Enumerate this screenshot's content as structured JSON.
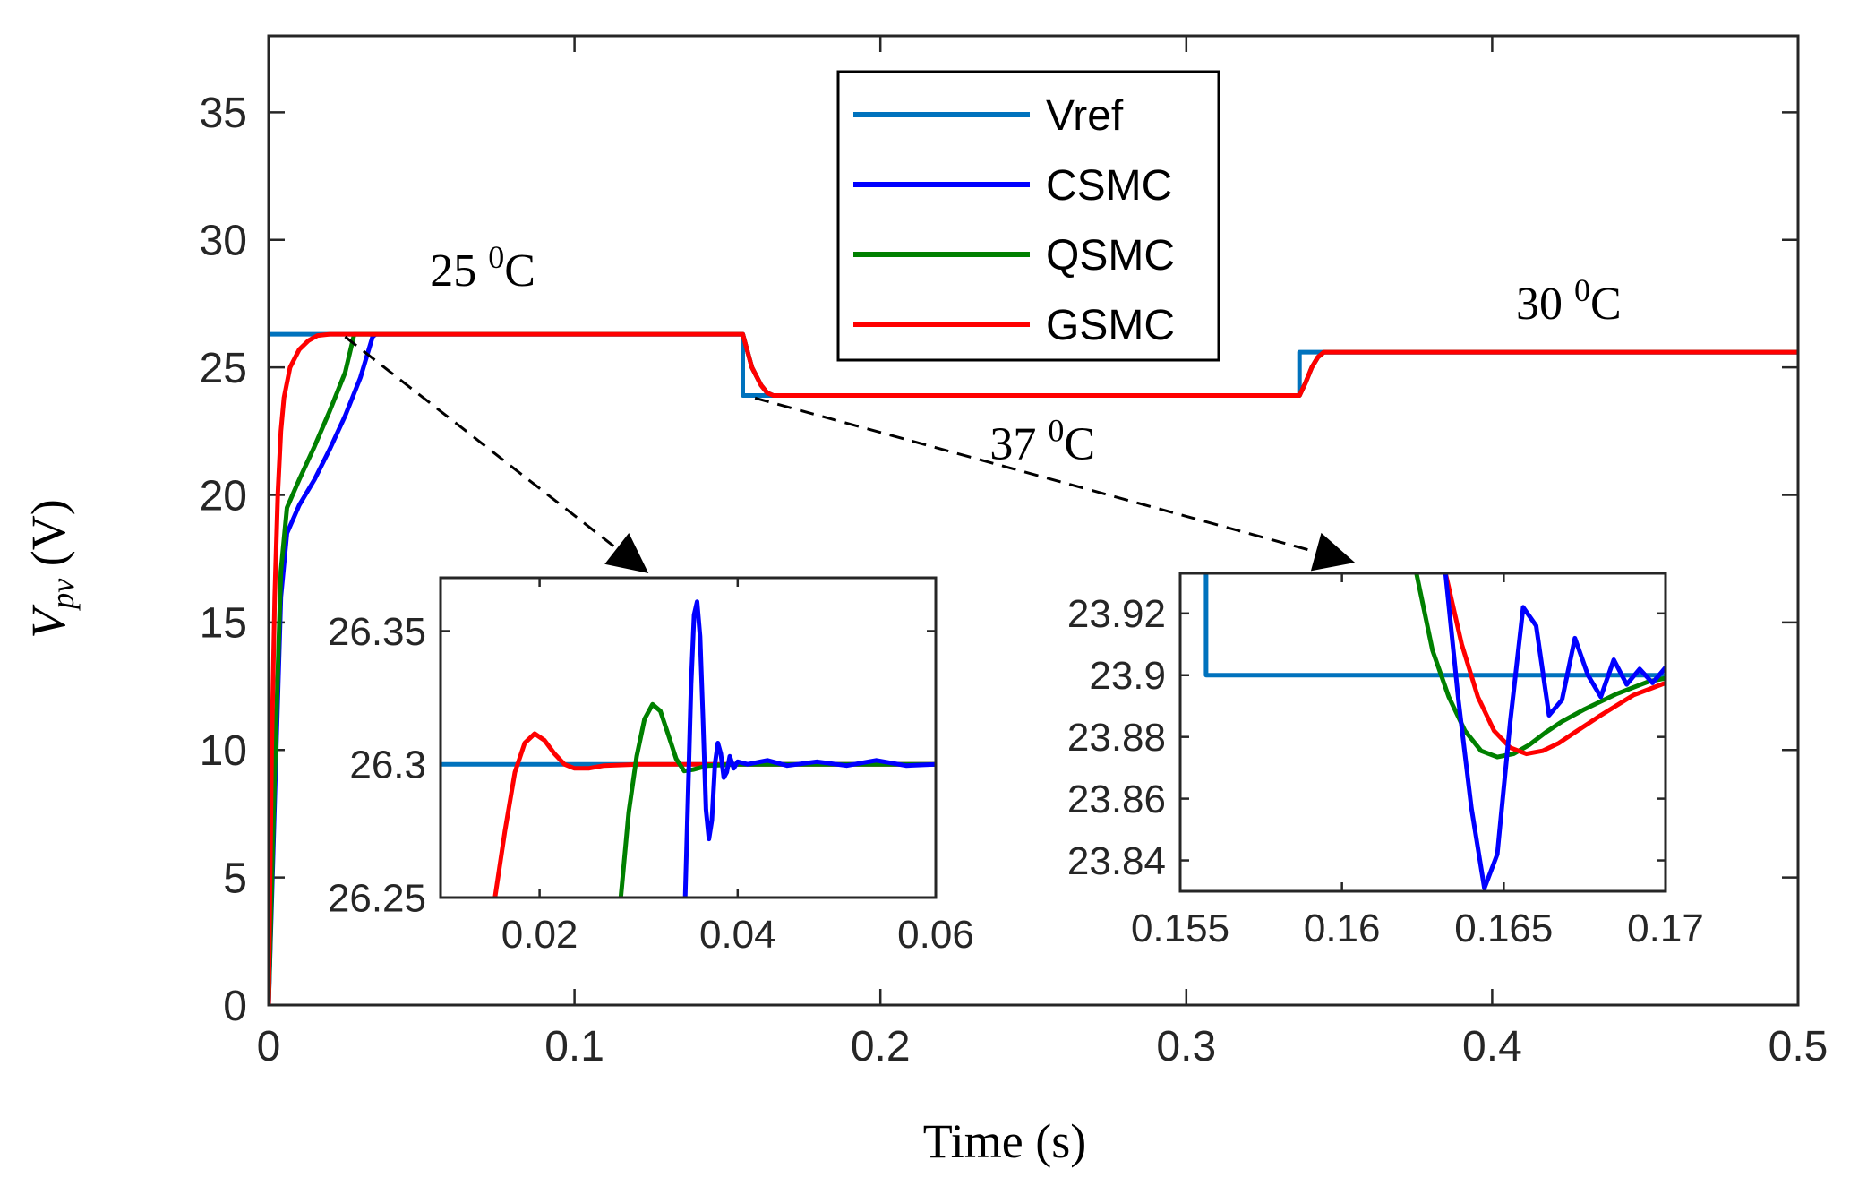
{
  "chart_data": [
    {
      "type": "line",
      "xlabel": "Time (s)",
      "ylabel_main": "V",
      "ylabel_sub": "pv",
      "ylabel_unit": "(V)",
      "xlim": [
        0,
        0.5
      ],
      "ylim": [
        0,
        38
      ],
      "xticks": [
        {
          "value": 0,
          "label": "0"
        },
        {
          "value": 0.1,
          "label": "0.1"
        },
        {
          "value": 0.2,
          "label": "0.2"
        },
        {
          "value": 0.3,
          "label": "0.3"
        },
        {
          "value": 0.4,
          "label": "0.4"
        },
        {
          "value": 0.5,
          "label": "0.5"
        }
      ],
      "yticks": [
        {
          "value": 0,
          "label": "0"
        },
        {
          "value": 5,
          "label": "5"
        },
        {
          "value": 10,
          "label": "10"
        },
        {
          "value": 15,
          "label": "15"
        },
        {
          "value": 20,
          "label": "20"
        },
        {
          "value": 25,
          "label": "25"
        },
        {
          "value": 30,
          "label": "30"
        },
        {
          "value": 35,
          "label": "35"
        }
      ],
      "legend": [
        "Vref",
        "CSMC",
        "QSMC",
        "GSMC"
      ],
      "legend_position": "top-center",
      "annotations": [
        {
          "text": "25",
          "sup": "0",
          "unit": "C",
          "x": 0.07,
          "y": 28.2
        },
        {
          "text": "37",
          "sup": "0",
          "unit": "C",
          "x": 0.253,
          "y": 21.4
        },
        {
          "text": "30",
          "sup": "0",
          "unit": "C",
          "x": 0.425,
          "y": 26.9
        }
      ],
      "series": [
        {
          "name": "Vref",
          "color": "#0072BD",
          "x": [
            0,
            0.155,
            0.155,
            0.337,
            0.337,
            0.5
          ],
          "y": [
            26.3,
            26.3,
            23.9,
            23.9,
            25.6,
            25.6
          ]
        },
        {
          "name": "CSMC",
          "color": "#0000FF",
          "x": [
            0,
            0.002,
            0.004,
            0.006,
            0.01,
            0.015,
            0.02,
            0.025,
            0.03,
            0.034,
            0.035,
            0.155,
            0.158,
            0.161,
            0.163,
            0.165,
            0.337,
            0.339,
            0.341,
            0.343,
            0.345,
            0.5
          ],
          "y": [
            0,
            8,
            16,
            18.5,
            19.6,
            20.6,
            21.8,
            23.1,
            24.6,
            26.2,
            26.3,
            26.3,
            25.0,
            24.3,
            24.0,
            23.9,
            23.9,
            24.4,
            25.0,
            25.4,
            25.6,
            25.6
          ]
        },
        {
          "name": "QSMC",
          "color": "#008000",
          "x": [
            0,
            0.002,
            0.004,
            0.006,
            0.01,
            0.015,
            0.02,
            0.025,
            0.028,
            0.031,
            0.034,
            0.155,
            0.158,
            0.161,
            0.163,
            0.165,
            0.337,
            0.339,
            0.341,
            0.343,
            0.345,
            0.5
          ],
          "y": [
            0,
            9,
            17,
            19.5,
            20.6,
            21.9,
            23.3,
            24.8,
            26.3,
            26.3,
            26.3,
            26.3,
            25.0,
            24.3,
            24.0,
            23.9,
            23.9,
            24.4,
            25.0,
            25.4,
            25.6,
            25.6
          ]
        },
        {
          "name": "GSMC",
          "color": "#FF0000",
          "x": [
            0,
            0.001,
            0.002,
            0.003,
            0.004,
            0.005,
            0.007,
            0.01,
            0.013,
            0.016,
            0.02,
            0.155,
            0.158,
            0.161,
            0.163,
            0.165,
            0.337,
            0.339,
            0.341,
            0.343,
            0.345,
            0.5
          ],
          "y": [
            0,
            10,
            16,
            20,
            22.5,
            23.8,
            25.0,
            25.7,
            26.05,
            26.25,
            26.3,
            26.3,
            25.0,
            24.3,
            24.0,
            23.9,
            23.9,
            24.4,
            25.0,
            25.4,
            25.6,
            25.6
          ]
        }
      ]
    },
    {
      "type": "line",
      "inset": "left",
      "xlim": [
        0.01,
        0.06
      ],
      "ylim": [
        26.25,
        26.37
      ],
      "xticks": [
        {
          "value": 0.02,
          "label": "0.02"
        },
        {
          "value": 0.04,
          "label": "0.04"
        },
        {
          "value": 0.06,
          "label": "0.06"
        }
      ],
      "yticks": [
        {
          "value": 26.25,
          "label": "26.25"
        },
        {
          "value": 26.3,
          "label": "26.3"
        },
        {
          "value": 26.35,
          "label": "26.35"
        }
      ],
      "zoom_arrow_from": {
        "x": 0.025,
        "y": 26.1
      },
      "series": [
        {
          "name": "Vref",
          "color": "#0072BD",
          "x": [
            0.01,
            0.06
          ],
          "y": [
            26.3,
            26.3
          ]
        },
        {
          "name": "GSMC",
          "color": "#FF0000",
          "x": [
            0.0155,
            0.0165,
            0.0175,
            0.0185,
            0.0195,
            0.0205,
            0.0215,
            0.0225,
            0.0235,
            0.025,
            0.0265,
            0.03,
            0.035,
            0.04,
            0.06
          ],
          "y": [
            26.25,
            26.275,
            26.297,
            26.308,
            26.3115,
            26.309,
            26.304,
            26.3,
            26.2985,
            26.2985,
            26.2995,
            26.3,
            26.3,
            26.3,
            26.3
          ]
        },
        {
          "name": "QSMC",
          "color": "#008000",
          "x": [
            0.0282,
            0.029,
            0.0298,
            0.0306,
            0.0314,
            0.0322,
            0.033,
            0.0338,
            0.0346,
            0.0355,
            0.037,
            0.04,
            0.06
          ],
          "y": [
            26.25,
            26.282,
            26.303,
            26.317,
            26.3225,
            26.32,
            26.311,
            26.302,
            26.2975,
            26.298,
            26.2995,
            26.3,
            26.3
          ]
        },
        {
          "name": "CSMC",
          "color": "#0000FF",
          "x": [
            0.0347,
            0.035,
            0.0353,
            0.0356,
            0.0359,
            0.0362,
            0.0365,
            0.0368,
            0.0371,
            0.0374,
            0.0377,
            0.038,
            0.0383,
            0.0386,
            0.0389,
            0.0392,
            0.0396,
            0.04,
            0.041,
            0.043,
            0.045,
            0.048,
            0.051,
            0.054,
            0.057,
            0.06
          ],
          "y": [
            26.25,
            26.29,
            26.33,
            26.356,
            26.361,
            26.348,
            26.317,
            26.283,
            26.272,
            26.279,
            26.3,
            26.308,
            26.304,
            26.295,
            26.297,
            26.303,
            26.2985,
            26.301,
            26.3,
            26.3015,
            26.2995,
            26.301,
            26.2995,
            26.3015,
            26.2995,
            26.3
          ]
        }
      ]
    },
    {
      "type": "line",
      "inset": "right",
      "xlim": [
        0.155,
        0.17
      ],
      "ylim": [
        23.83,
        23.933
      ],
      "xticks": [
        {
          "value": 0.155,
          "label": "0.155"
        },
        {
          "value": 0.16,
          "label": "0.16"
        },
        {
          "value": 0.165,
          "label": "0.165"
        },
        {
          "value": 0.17,
          "label": "0.17"
        }
      ],
      "yticks": [
        {
          "value": 23.84,
          "label": "23.84"
        },
        {
          "value": 23.86,
          "label": "23.86"
        },
        {
          "value": 23.88,
          "label": "23.88"
        },
        {
          "value": 23.9,
          "label": "23.9"
        },
        {
          "value": 23.92,
          "label": "23.92"
        }
      ],
      "zoom_arrow_from": {
        "x": 0.159,
        "y": 23.8
      },
      "series": [
        {
          "name": "Vref",
          "color": "#0072BD",
          "x": [
            0.1558,
            0.1558,
            0.17
          ],
          "y": [
            23.933,
            23.9,
            23.9
          ]
        },
        {
          "name": "QSMC",
          "color": "#008000",
          "x": [
            0.1623,
            0.1628,
            0.1633,
            0.1638,
            0.1643,
            0.1648,
            0.1653,
            0.1658,
            0.1663,
            0.1668,
            0.1675,
            0.1685,
            0.1695,
            0.17
          ],
          "y": [
            23.933,
            23.908,
            23.893,
            23.882,
            23.8755,
            23.8735,
            23.8745,
            23.8775,
            23.8815,
            23.885,
            23.889,
            23.894,
            23.898,
            23.899
          ]
        },
        {
          "name": "GSMC",
          "color": "#FF0000",
          "x": [
            0.1632,
            0.1637,
            0.1642,
            0.1647,
            0.1652,
            0.1657,
            0.1662,
            0.1667,
            0.1672,
            0.168,
            0.169,
            0.17
          ],
          "y": [
            23.933,
            23.91,
            23.893,
            23.882,
            23.8765,
            23.8745,
            23.8755,
            23.878,
            23.8815,
            23.887,
            23.8935,
            23.8975
          ]
        },
        {
          "name": "CSMC",
          "color": "#0000FF",
          "x": [
            0.1632,
            0.1636,
            0.164,
            0.1644,
            0.1648,
            0.1652,
            0.1656,
            0.166,
            0.1664,
            0.1668,
            0.1672,
            0.1676,
            0.168,
            0.1684,
            0.1688,
            0.1692,
            0.1696,
            0.17
          ],
          "y": [
            23.933,
            23.892,
            23.857,
            23.831,
            23.842,
            23.885,
            23.922,
            23.916,
            23.887,
            23.892,
            23.912,
            23.9,
            23.893,
            23.905,
            23.897,
            23.902,
            23.8975,
            23.9025
          ]
        }
      ]
    }
  ]
}
